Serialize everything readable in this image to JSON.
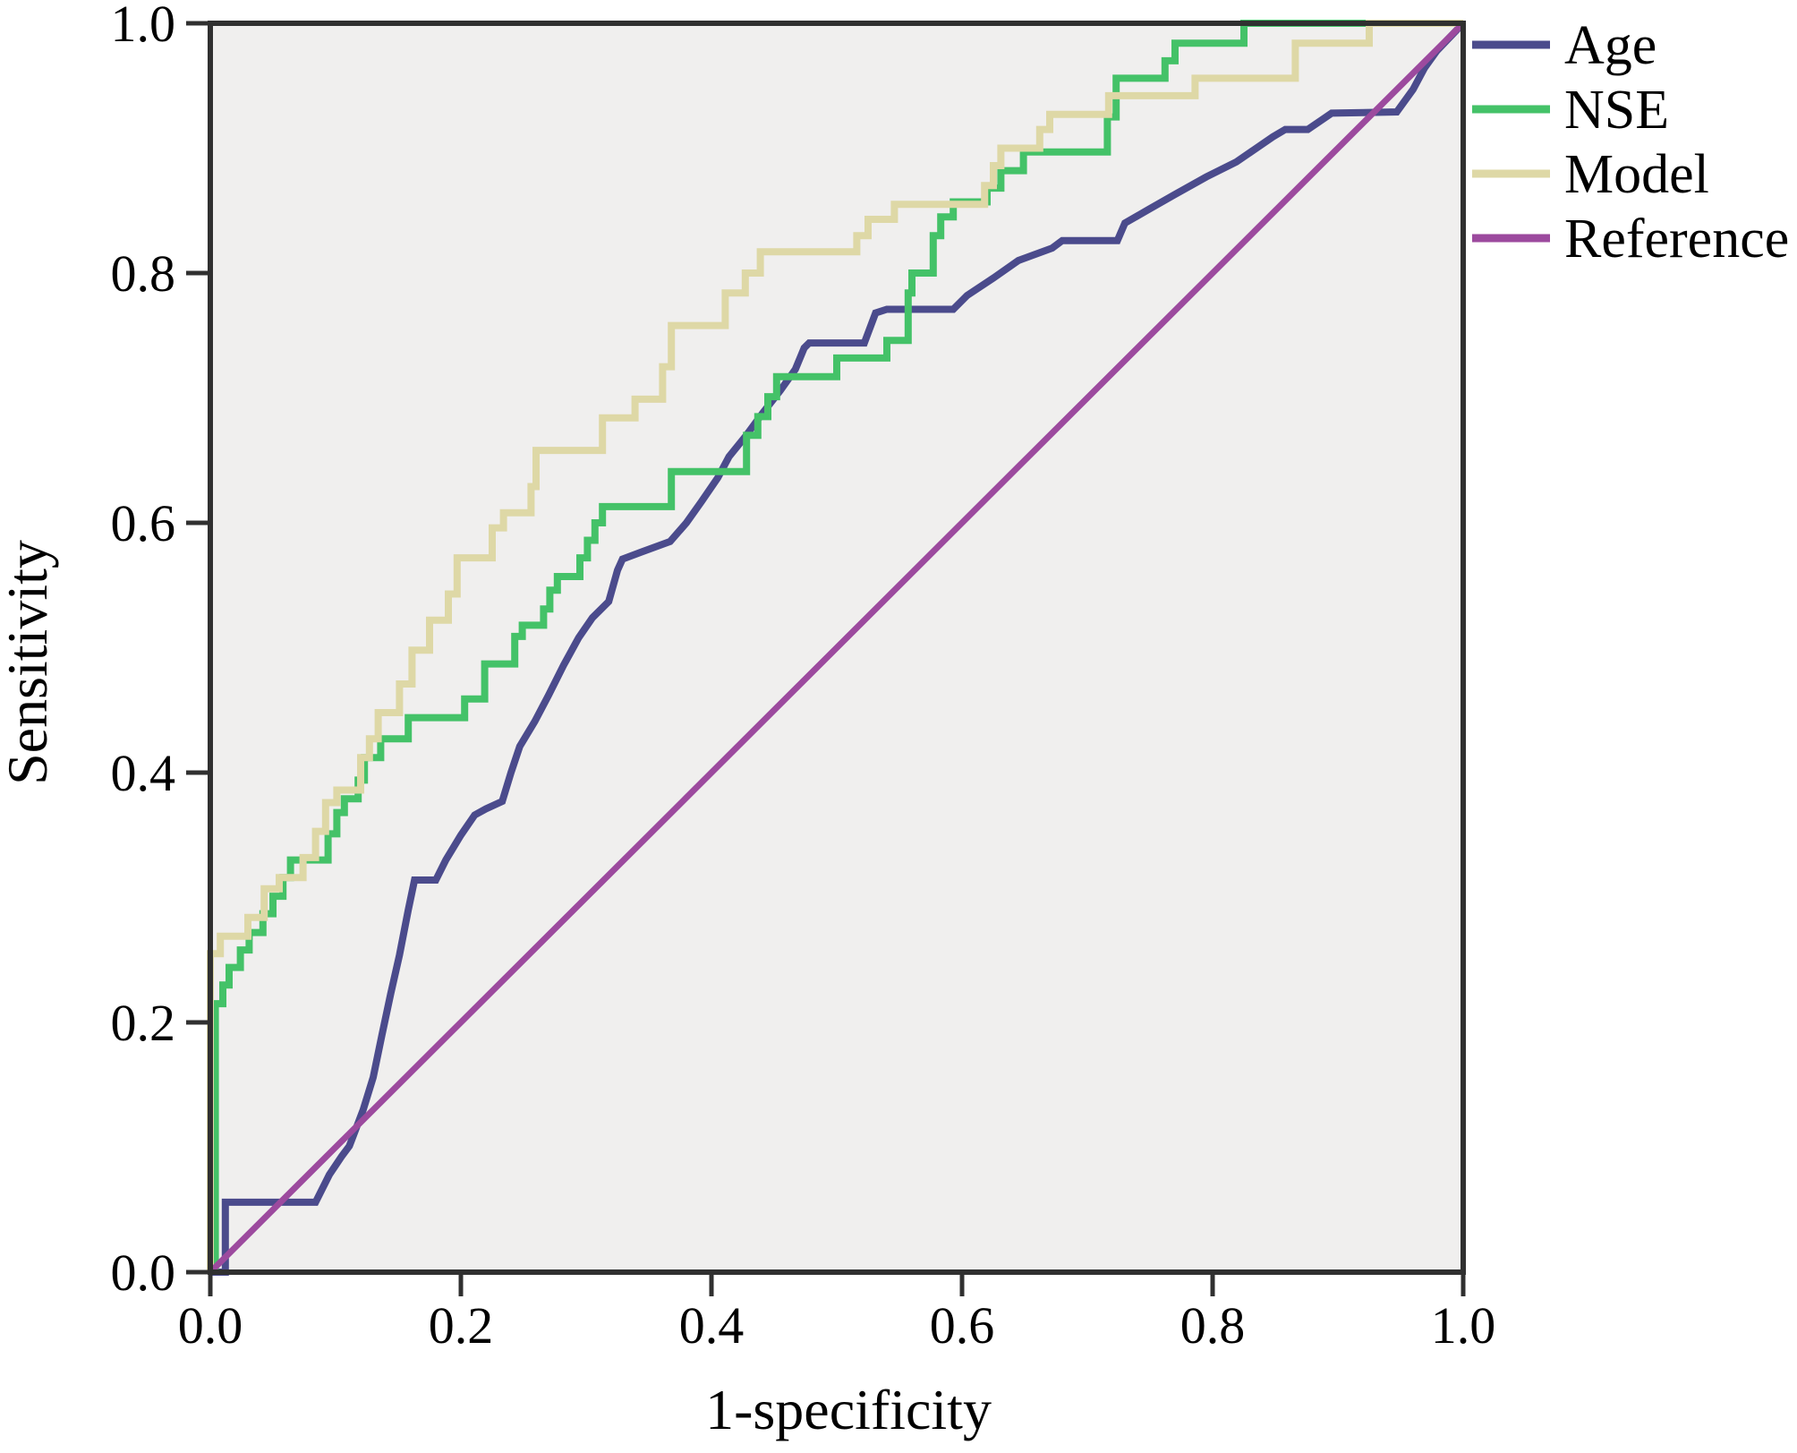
{
  "figure": {
    "background": "#ffffff"
  },
  "chart_data": {
    "type": "line",
    "subtype": "roc-curve",
    "title": "",
    "xlabel": "1-specificity",
    "ylabel": "Sensitivity",
    "xlim": [
      0,
      1
    ],
    "ylim": [
      0,
      1
    ],
    "grid": false,
    "plot_background": "#f0efee",
    "frame_color": "#303030",
    "tick_color": "#303030",
    "legend_position": "outside-top-right",
    "x_ticks": [
      "0.0",
      "0.2",
      "0.4",
      "0.6",
      "0.8",
      "1.0"
    ],
    "x_tick_values": [
      0,
      0.2,
      0.4,
      0.6,
      0.8,
      1.0
    ],
    "y_ticks": [
      "0.0",
      "0.2",
      "0.4",
      "0.6",
      "0.8",
      "1.0"
    ],
    "y_tick_values": [
      0,
      0.2,
      0.4,
      0.6,
      0.8,
      1.0
    ],
    "series": [
      {
        "name": "Age",
        "color": "#4b4b8c",
        "points": [
          [
            0,
            0
          ],
          [
            0.012,
            0
          ],
          [
            0.012,
            0.056
          ],
          [
            0.084,
            0.056
          ],
          [
            0.095,
            0.078
          ],
          [
            0.105,
            0.093
          ],
          [
            0.111,
            0.101
          ],
          [
            0.122,
            0.13
          ],
          [
            0.13,
            0.156
          ],
          [
            0.137,
            0.19
          ],
          [
            0.144,
            0.223
          ],
          [
            0.151,
            0.254
          ],
          [
            0.158,
            0.29
          ],
          [
            0.163,
            0.314
          ],
          [
            0.18,
            0.314
          ],
          [
            0.188,
            0.33
          ],
          [
            0.2,
            0.35
          ],
          [
            0.211,
            0.366
          ],
          [
            0.22,
            0.371
          ],
          [
            0.233,
            0.377
          ],
          [
            0.24,
            0.4
          ],
          [
            0.247,
            0.421
          ],
          [
            0.259,
            0.441
          ],
          [
            0.27,
            0.462
          ],
          [
            0.282,
            0.486
          ],
          [
            0.294,
            0.508
          ],
          [
            0.305,
            0.524
          ],
          [
            0.318,
            0.537
          ],
          [
            0.325,
            0.562
          ],
          [
            0.329,
            0.571
          ],
          [
            0.345,
            0.577
          ],
          [
            0.367,
            0.585
          ],
          [
            0.38,
            0.6
          ],
          [
            0.392,
            0.617
          ],
          [
            0.405,
            0.636
          ],
          [
            0.414,
            0.653
          ],
          [
            0.427,
            0.669
          ],
          [
            0.441,
            0.688
          ],
          [
            0.455,
            0.706
          ],
          [
            0.467,
            0.723
          ],
          [
            0.474,
            0.74
          ],
          [
            0.478,
            0.744
          ],
          [
            0.522,
            0.744
          ],
          [
            0.531,
            0.768
          ],
          [
            0.54,
            0.771
          ],
          [
            0.593,
            0.771
          ],
          [
            0.604,
            0.782
          ],
          [
            0.625,
            0.796
          ],
          [
            0.645,
            0.81
          ],
          [
            0.672,
            0.82
          ],
          [
            0.68,
            0.826
          ],
          [
            0.724,
            0.826
          ],
          [
            0.73,
            0.84
          ],
          [
            0.749,
            0.851
          ],
          [
            0.77,
            0.863
          ],
          [
            0.795,
            0.877
          ],
          [
            0.819,
            0.889
          ],
          [
            0.848,
            0.909
          ],
          [
            0.858,
            0.915
          ],
          [
            0.876,
            0.915
          ],
          [
            0.895,
            0.928
          ],
          [
            0.947,
            0.929
          ],
          [
            0.96,
            0.947
          ],
          [
            0.969,
            0.964
          ],
          [
            0.979,
            0.978
          ],
          [
            1,
            1
          ]
        ]
      },
      {
        "name": "NSE",
        "color": "#44c268",
        "points": [
          [
            0.004,
            0
          ],
          [
            0.004,
            0.215
          ],
          [
            0.01,
            0.215
          ],
          [
            0.01,
            0.23
          ],
          [
            0.015,
            0.23
          ],
          [
            0.015,
            0.244
          ],
          [
            0.024,
            0.244
          ],
          [
            0.024,
            0.258
          ],
          [
            0.031,
            0.258
          ],
          [
            0.031,
            0.272
          ],
          [
            0.042,
            0.272
          ],
          [
            0.042,
            0.287
          ],
          [
            0.05,
            0.287
          ],
          [
            0.05,
            0.301
          ],
          [
            0.058,
            0.301
          ],
          [
            0.058,
            0.316
          ],
          [
            0.064,
            0.316
          ],
          [
            0.064,
            0.33
          ],
          [
            0.094,
            0.33
          ],
          [
            0.094,
            0.351
          ],
          [
            0.101,
            0.351
          ],
          [
            0.101,
            0.368
          ],
          [
            0.107,
            0.368
          ],
          [
            0.107,
            0.379
          ],
          [
            0.118,
            0.379
          ],
          [
            0.118,
            0.394
          ],
          [
            0.123,
            0.394
          ],
          [
            0.123,
            0.412
          ],
          [
            0.136,
            0.412
          ],
          [
            0.136,
            0.427
          ],
          [
            0.158,
            0.427
          ],
          [
            0.158,
            0.444
          ],
          [
            0.203,
            0.444
          ],
          [
            0.203,
            0.459
          ],
          [
            0.219,
            0.459
          ],
          [
            0.219,
            0.487
          ],
          [
            0.243,
            0.487
          ],
          [
            0.243,
            0.509
          ],
          [
            0.249,
            0.509
          ],
          [
            0.249,
            0.518
          ],
          [
            0.266,
            0.518
          ],
          [
            0.266,
            0.531
          ],
          [
            0.271,
            0.531
          ],
          [
            0.271,
            0.546
          ],
          [
            0.277,
            0.546
          ],
          [
            0.277,
            0.557
          ],
          [
            0.295,
            0.557
          ],
          [
            0.295,
            0.572
          ],
          [
            0.301,
            0.572
          ],
          [
            0.301,
            0.586
          ],
          [
            0.307,
            0.586
          ],
          [
            0.307,
            0.6
          ],
          [
            0.313,
            0.6
          ],
          [
            0.313,
            0.613
          ],
          [
            0.368,
            0.613
          ],
          [
            0.368,
            0.641
          ],
          [
            0.428,
            0.641
          ],
          [
            0.428,
            0.67
          ],
          [
            0.437,
            0.67
          ],
          [
            0.437,
            0.685
          ],
          [
            0.445,
            0.685
          ],
          [
            0.445,
            0.701
          ],
          [
            0.452,
            0.701
          ],
          [
            0.452,
            0.717
          ],
          [
            0.5,
            0.717
          ],
          [
            0.5,
            0.732
          ],
          [
            0.54,
            0.732
          ],
          [
            0.54,
            0.746
          ],
          [
            0.557,
            0.746
          ],
          [
            0.557,
            0.784
          ],
          [
            0.56,
            0.784
          ],
          [
            0.56,
            0.8
          ],
          [
            0.577,
            0.8
          ],
          [
            0.577,
            0.83
          ],
          [
            0.583,
            0.83
          ],
          [
            0.583,
            0.845
          ],
          [
            0.593,
            0.845
          ],
          [
            0.593,
            0.857
          ],
          [
            0.62,
            0.857
          ],
          [
            0.62,
            0.868
          ],
          [
            0.631,
            0.868
          ],
          [
            0.631,
            0.882
          ],
          [
            0.649,
            0.882
          ],
          [
            0.649,
            0.897
          ],
          [
            0.716,
            0.897
          ],
          [
            0.716,
            0.925
          ],
          [
            0.723,
            0.925
          ],
          [
            0.723,
            0.956
          ],
          [
            0.762,
            0.956
          ],
          [
            0.762,
            0.97
          ],
          [
            0.77,
            0.97
          ],
          [
            0.77,
            0.984
          ],
          [
            0.825,
            0.984
          ],
          [
            0.825,
            1
          ],
          [
            1,
            1
          ]
        ]
      },
      {
        "name": "Model",
        "color": "#ded8a6",
        "points": [
          [
            0,
            0
          ],
          [
            0,
            0.255
          ],
          [
            0.008,
            0.255
          ],
          [
            0.008,
            0.269
          ],
          [
            0.03,
            0.269
          ],
          [
            0.03,
            0.284
          ],
          [
            0.043,
            0.284
          ],
          [
            0.043,
            0.307
          ],
          [
            0.055,
            0.307
          ],
          [
            0.055,
            0.316
          ],
          [
            0.074,
            0.316
          ],
          [
            0.074,
            0.332
          ],
          [
            0.084,
            0.332
          ],
          [
            0.084,
            0.353
          ],
          [
            0.092,
            0.353
          ],
          [
            0.092,
            0.376
          ],
          [
            0.101,
            0.376
          ],
          [
            0.101,
            0.386
          ],
          [
            0.12,
            0.386
          ],
          [
            0.12,
            0.412
          ],
          [
            0.127,
            0.412
          ],
          [
            0.127,
            0.427
          ],
          [
            0.134,
            0.427
          ],
          [
            0.134,
            0.448
          ],
          [
            0.151,
            0.448
          ],
          [
            0.151,
            0.471
          ],
          [
            0.161,
            0.471
          ],
          [
            0.161,
            0.498
          ],
          [
            0.175,
            0.498
          ],
          [
            0.175,
            0.522
          ],
          [
            0.19,
            0.522
          ],
          [
            0.19,
            0.543
          ],
          [
            0.197,
            0.543
          ],
          [
            0.197,
            0.572
          ],
          [
            0.225,
            0.572
          ],
          [
            0.225,
            0.596
          ],
          [
            0.234,
            0.596
          ],
          [
            0.234,
            0.608
          ],
          [
            0.256,
            0.608
          ],
          [
            0.256,
            0.629
          ],
          [
            0.26,
            0.629
          ],
          [
            0.26,
            0.658
          ],
          [
            0.313,
            0.658
          ],
          [
            0.313,
            0.684
          ],
          [
            0.339,
            0.684
          ],
          [
            0.339,
            0.699
          ],
          [
            0.361,
            0.699
          ],
          [
            0.361,
            0.725
          ],
          [
            0.368,
            0.725
          ],
          [
            0.368,
            0.758
          ],
          [
            0.411,
            0.758
          ],
          [
            0.411,
            0.784
          ],
          [
            0.427,
            0.784
          ],
          [
            0.427,
            0.8
          ],
          [
            0.439,
            0.8
          ],
          [
            0.439,
            0.817
          ],
          [
            0.516,
            0.817
          ],
          [
            0.516,
            0.83
          ],
          [
            0.525,
            0.83
          ],
          [
            0.525,
            0.843
          ],
          [
            0.546,
            0.843
          ],
          [
            0.546,
            0.855
          ],
          [
            0.618,
            0.855
          ],
          [
            0.618,
            0.87
          ],
          [
            0.625,
            0.87
          ],
          [
            0.625,
            0.886
          ],
          [
            0.631,
            0.886
          ],
          [
            0.631,
            0.9
          ],
          [
            0.662,
            0.9
          ],
          [
            0.662,
            0.915
          ],
          [
            0.67,
            0.915
          ],
          [
            0.67,
            0.927
          ],
          [
            0.717,
            0.927
          ],
          [
            0.717,
            0.942
          ],
          [
            0.786,
            0.942
          ],
          [
            0.786,
            0.956
          ],
          [
            0.866,
            0.956
          ],
          [
            0.866,
            0.984
          ],
          [
            0.925,
            0.984
          ],
          [
            0.925,
            1
          ],
          [
            1,
            1
          ]
        ]
      },
      {
        "name": "Reference",
        "color": "#9c4a9e",
        "points": [
          [
            0,
            0
          ],
          [
            1,
            1
          ]
        ]
      }
    ]
  }
}
